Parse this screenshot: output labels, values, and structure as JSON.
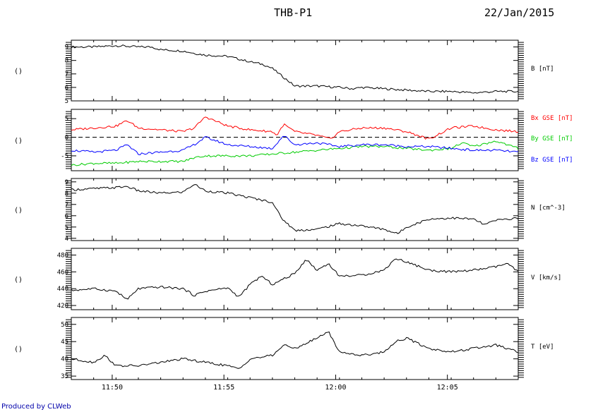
{
  "title": "THB-P1",
  "date": "22/Jan/2015",
  "footer": "Produced by CLWeb",
  "colors": {
    "axes": "#000000",
    "bx": "#ff0000",
    "by": "#00cc00",
    "bz": "#0000ff",
    "footer": "#0000aa"
  },
  "chart_data": [
    {
      "type": "line",
      "left_label": "()",
      "ylim": [
        5,
        9.5
      ],
      "yticks": [
        5,
        6,
        7,
        8,
        9
      ],
      "series": [
        {
          "name": "B [nT]",
          "color": "#000000",
          "t": [
            0,
            1,
            2,
            3,
            3.6,
            4,
            5,
            5.6,
            6,
            7,
            7.5,
            8,
            8.6,
            9,
            10,
            11,
            12,
            12.6,
            13,
            14,
            15,
            16,
            17,
            18,
            19,
            20
          ],
          "values": [
            9.0,
            9.0,
            9.1,
            9.0,
            9.0,
            8.8,
            8.7,
            8.5,
            8.4,
            8.3,
            8.1,
            7.9,
            7.7,
            7.4,
            6.1,
            6.1,
            6.0,
            5.9,
            6.0,
            5.9,
            5.8,
            5.7,
            5.7,
            5.6,
            5.7,
            5.7
          ]
        }
      ]
    },
    {
      "type": "line",
      "left_label": "()",
      "ylim": [
        -9,
        7.5
      ],
      "yticks": [
        -5,
        0,
        5
      ],
      "reference_line": 0,
      "series": [
        {
          "name": "Bx GSE [nT]",
          "color": "#ff0000",
          "t": [
            0,
            1,
            2,
            2.5,
            3,
            4,
            5,
            5.5,
            6,
            7,
            8,
            9,
            9.2,
            9.5,
            10,
            11,
            11.6,
            12,
            13,
            14,
            15,
            16,
            17,
            18,
            19,
            20
          ],
          "values": [
            2,
            2.5,
            3,
            4.5,
            2.5,
            2,
            1.5,
            2.5,
            5.5,
            3,
            2,
            1.5,
            0.5,
            3.5,
            1.5,
            0.5,
            -0.5,
            1.5,
            2.5,
            2.5,
            1.5,
            -0.5,
            2.5,
            3,
            2,
            1.5
          ]
        },
        {
          "name": "By GSE [nT]",
          "color": "#00cc00",
          "t": [
            0,
            1,
            2,
            3,
            4,
            5,
            5.5,
            6,
            7,
            8,
            9,
            10,
            11,
            12,
            13,
            14,
            15,
            16,
            17,
            17.5,
            18,
            19,
            19.5,
            20
          ],
          "values": [
            -7.5,
            -7,
            -7,
            -6.5,
            -6.5,
            -6.5,
            -5.5,
            -5,
            -5,
            -5,
            -4.5,
            -4,
            -3.5,
            -3,
            -2.5,
            -2.5,
            -3,
            -3.5,
            -3,
            -1.5,
            -2.5,
            -1,
            -2,
            -3
          ]
        },
        {
          "name": "Bz GSE [nT]",
          "color": "#0000ff",
          "t": [
            0,
            1,
            2,
            2.5,
            3,
            4,
            5,
            5.5,
            6,
            7,
            8,
            9,
            9.5,
            10,
            11,
            12,
            13,
            14,
            15,
            16,
            17,
            18,
            19,
            20
          ],
          "values": [
            -3.5,
            -4,
            -3.5,
            -2,
            -4.5,
            -4,
            -3.5,
            -2,
            0,
            -2,
            -2.5,
            -3,
            0.5,
            -2,
            -1.5,
            -2.5,
            -2,
            -2,
            -2.5,
            -2.5,
            -3,
            -3.5,
            -3.5,
            -4
          ]
        }
      ]
    },
    {
      "type": "line",
      "left_label": "()",
      "ylim": [
        3.8,
        9.3
      ],
      "yticks": [
        4,
        5,
        6,
        7,
        8,
        9
      ],
      "series": [
        {
          "name": "N [cm^-3]",
          "label": "N [cm^-3]",
          "color": "#000000",
          "t": [
            0,
            1,
            2,
            2.5,
            3,
            4,
            5,
            5.5,
            6,
            7,
            8,
            9,
            9.4,
            10,
            11,
            12,
            13,
            14,
            14.6,
            15,
            16,
            17,
            18,
            18.5,
            19,
            20
          ],
          "values": [
            8.3,
            8.4,
            8.5,
            8.6,
            8.2,
            8.0,
            8.1,
            8.8,
            8.2,
            8.0,
            7.6,
            7.2,
            5.8,
            4.7,
            4.8,
            5.3,
            5.1,
            4.8,
            4.4,
            5.0,
            5.7,
            5.8,
            5.7,
            5.2,
            5.6,
            5.8
          ]
        }
      ]
    },
    {
      "type": "line",
      "left_label": "()",
      "ylim": [
        415,
        488
      ],
      "yticks": [
        420,
        440,
        460,
        480
      ],
      "series": [
        {
          "name": "V [km/s]",
          "color": "#000000",
          "t": [
            0,
            1,
            2,
            2.5,
            3,
            4,
            5,
            5.5,
            6,
            7,
            7.5,
            8,
            8.5,
            9,
            10,
            10.5,
            11,
            11.5,
            12,
            13,
            14,
            14.5,
            15,
            16,
            17,
            18,
            19,
            19.5,
            20
          ],
          "values": [
            438,
            440,
            437,
            427,
            440,
            442,
            440,
            432,
            437,
            441,
            430,
            445,
            455,
            445,
            458,
            475,
            462,
            470,
            455,
            456,
            462,
            476,
            472,
            462,
            460,
            462,
            466,
            470,
            460
          ]
        }
      ]
    },
    {
      "type": "line",
      "left_label": "()",
      "ylim": [
        34,
        52
      ],
      "yticks": [
        35,
        40,
        45,
        50
      ],
      "series": [
        {
          "name": "T [eV]",
          "color": "#000000",
          "t": [
            0,
            1,
            1.5,
            2,
            3,
            4,
            5,
            6,
            7,
            7.5,
            8,
            9,
            9.5,
            10,
            11,
            11.5,
            12,
            13,
            14,
            14.5,
            15,
            16,
            17,
            18,
            19,
            20
          ],
          "values": [
            40,
            39,
            41,
            38,
            38,
            39,
            40,
            39,
            38,
            37,
            40,
            41,
            44,
            43,
            46,
            48,
            42,
            41,
            42,
            45,
            46,
            43,
            42,
            43,
            44,
            42
          ]
        }
      ]
    }
  ],
  "xaxis": {
    "t_range": [
      0,
      20
    ],
    "tick_labels": [
      {
        "label": "11:50",
        "t": 1.83
      },
      {
        "label": "11:55",
        "t": 6.83
      },
      {
        "label": "12:00",
        "t": 11.83
      },
      {
        "label": "12:05",
        "t": 16.83
      }
    ],
    "minor_every": 1
  }
}
